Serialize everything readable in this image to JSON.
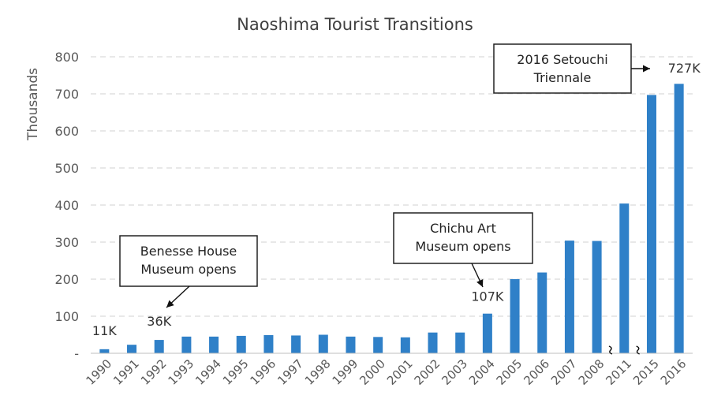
{
  "chart_data": {
    "type": "bar",
    "title": "Naoshima Tourist Transitions",
    "ylabel": "Thousands",
    "xlabel": "",
    "ylim": [
      0,
      800
    ],
    "yticks": [
      0,
      100,
      200,
      300,
      400,
      500,
      600,
      700,
      800
    ],
    "ytick_labels": [
      "-",
      "100",
      "200",
      "300",
      "400",
      "500",
      "600",
      "700",
      "800"
    ],
    "grid": true,
    "bar_color": "#2f80c8",
    "categories": [
      "1990",
      "1991",
      "1992",
      "1993",
      "1994",
      "1995",
      "1996",
      "1997",
      "1998",
      "1999",
      "2000",
      "2001",
      "2002",
      "2003",
      "2004",
      "2005",
      "2006",
      "2007",
      "2008",
      "2011",
      "2015",
      "2016"
    ],
    "values": [
      11,
      23,
      36,
      45,
      45,
      47,
      49,
      48,
      50,
      45,
      44,
      43,
      56,
      56,
      107,
      200,
      218,
      304,
      303,
      404,
      697,
      727
    ],
    "data_labels": [
      {
        "category": "1990",
        "text": "11K"
      },
      {
        "category": "1992",
        "text": "36K"
      },
      {
        "category": "2004",
        "text": "107K"
      },
      {
        "category": "2016",
        "text": "727K"
      }
    ],
    "axis_breaks_after": [
      "2008",
      "2011"
    ],
    "annotations": [
      {
        "lines": [
          "Benesse House",
          "Museum opens"
        ],
        "target": "1992"
      },
      {
        "lines": [
          "Chichu Art",
          "Museum opens"
        ],
        "target": "2004"
      },
      {
        "lines": [
          "2016 Setouchi",
          "Triennale"
        ],
        "target": "2016"
      }
    ]
  }
}
